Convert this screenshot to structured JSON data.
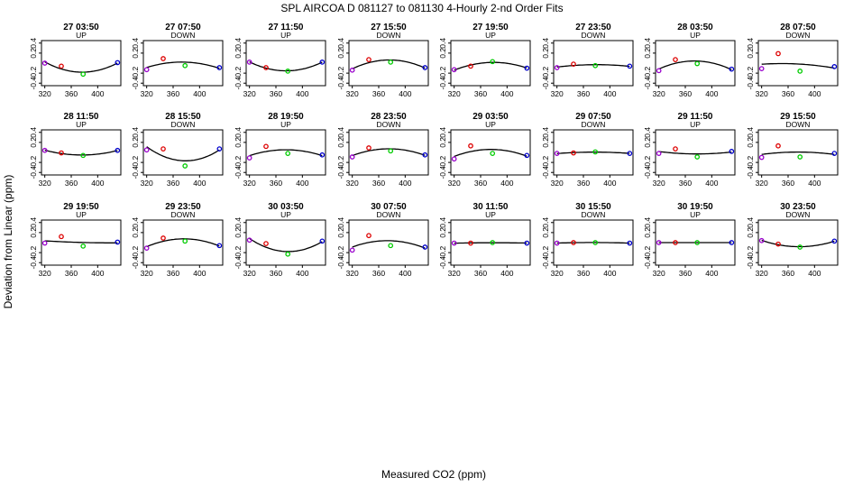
{
  "chart_data": {
    "type": "scatter",
    "title": "SPL   AIRCOA D    081127 to 081130   4-Hourly 2-nd Order Fits",
    "xlabel": "Measured CO2 (ppm)",
    "ylabel": "Deviation from Linear (ppm)",
    "xlim": [
      315,
      435
    ],
    "ylim": [
      -0.45,
      0.45
    ],
    "x_ticks": [
      "320",
      "360",
      "400"
    ],
    "y_ticks": [
      "-0.4",
      "-0.2",
      "0.2",
      "0.4"
    ],
    "point_x": [
      320,
      345,
      378,
      430
    ],
    "point_colors": [
      "#9900cc",
      "#dd0000",
      "#00cc00",
      "#0000cc"
    ],
    "curve_color": "#000000",
    "panels": [
      {
        "label": "27 03:50",
        "direction": "UP",
        "values": [
          0.0,
          -0.06,
          -0.22,
          0.01
        ]
      },
      {
        "label": "27 07:50",
        "direction": "DOWN",
        "values": [
          -0.13,
          0.09,
          -0.05,
          -0.09
        ]
      },
      {
        "label": "27 11:50",
        "direction": "UP",
        "values": [
          0.02,
          -0.09,
          -0.16,
          0.02
        ]
      },
      {
        "label": "27 15:50",
        "direction": "DOWN",
        "values": [
          -0.14,
          0.07,
          0.02,
          -0.09
        ]
      },
      {
        "label": "27 19:50",
        "direction": "UP",
        "values": [
          -0.13,
          -0.06,
          0.03,
          -0.1
        ]
      },
      {
        "label": "27 23:50",
        "direction": "DOWN",
        "values": [
          -0.09,
          -0.02,
          -0.05,
          -0.06
        ]
      },
      {
        "label": "28 03:50",
        "direction": "UP",
        "values": [
          -0.15,
          0.07,
          -0.01,
          -0.12
        ]
      },
      {
        "label": "28 07:50",
        "direction": "DOWN",
        "values": [
          -0.11,
          0.19,
          -0.16,
          -0.07
        ]
      },
      {
        "label": "28 11:50",
        "direction": "UP",
        "values": [
          0.04,
          -0.01,
          -0.06,
          0.04
        ]
      },
      {
        "label": "28 15:50",
        "direction": "DOWN",
        "values": [
          0.05,
          0.07,
          -0.27,
          0.07
        ]
      },
      {
        "label": "28 19:50",
        "direction": "UP",
        "values": [
          -0.11,
          0.12,
          -0.02,
          -0.05
        ]
      },
      {
        "label": "28 23:50",
        "direction": "DOWN",
        "values": [
          -0.09,
          0.09,
          0.03,
          -0.05
        ]
      },
      {
        "label": "29 03:50",
        "direction": "UP",
        "values": [
          -0.13,
          0.13,
          -0.02,
          -0.06
        ]
      },
      {
        "label": "29 07:50",
        "direction": "DOWN",
        "values": [
          -0.02,
          -0.01,
          0.01,
          -0.02
        ]
      },
      {
        "label": "29 11:50",
        "direction": "UP",
        "values": [
          -0.02,
          0.07,
          -0.09,
          0.02
        ]
      },
      {
        "label": "29 15:50",
        "direction": "DOWN",
        "values": [
          -0.1,
          0.13,
          -0.09,
          -0.02
        ]
      },
      {
        "label": "29 19:50",
        "direction": "UP",
        "values": [
          -0.01,
          0.12,
          -0.07,
          0.01
        ]
      },
      {
        "label": "29 23:50",
        "direction": "DOWN",
        "values": [
          -0.11,
          0.09,
          0.03,
          -0.06
        ]
      },
      {
        "label": "30 03:50",
        "direction": "UP",
        "values": [
          0.05,
          -0.02,
          -0.23,
          0.03
        ]
      },
      {
        "label": "30 07:50",
        "direction": "DOWN",
        "values": [
          -0.15,
          0.14,
          -0.06,
          -0.09
        ]
      },
      {
        "label": "30 11:50",
        "direction": "UP",
        "values": [
          -0.01,
          -0.01,
          0.0,
          -0.01
        ]
      },
      {
        "label": "30 15:50",
        "direction": "DOWN",
        "values": [
          -0.01,
          0.0,
          0.0,
          -0.01
        ]
      },
      {
        "label": "30 19:50",
        "direction": "UP",
        "values": [
          0.0,
          0.0,
          0.0,
          0.0
        ]
      },
      {
        "label": "30 23:50",
        "direction": "DOWN",
        "values": [
          0.04,
          -0.03,
          -0.09,
          0.03
        ]
      }
    ]
  }
}
